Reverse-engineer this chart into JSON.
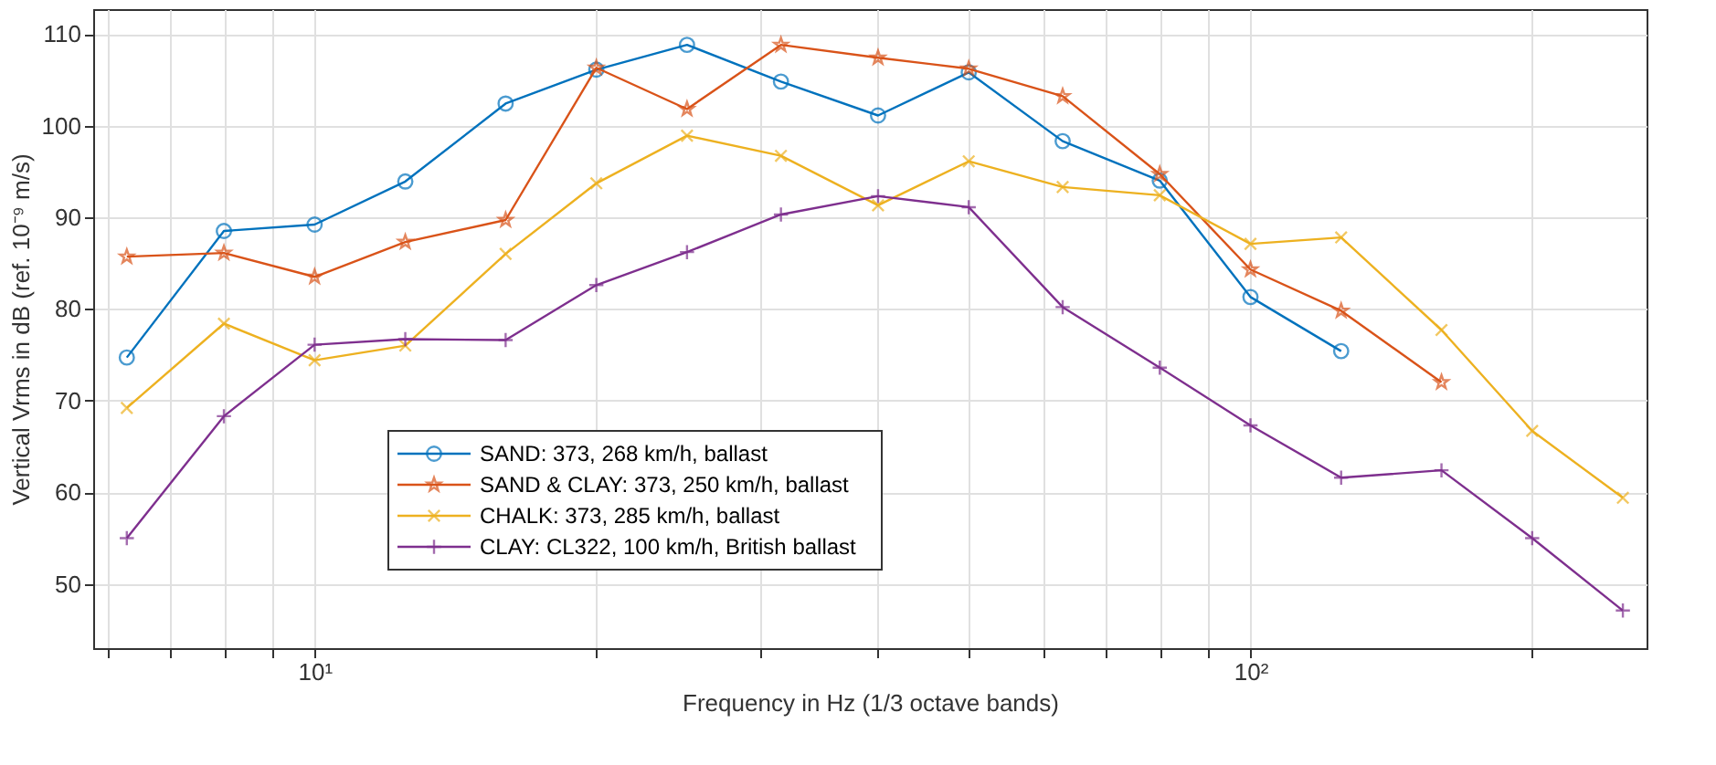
{
  "chart_data": {
    "type": "line",
    "xlabel": "Frequency in Hz (1/3 octave bands)",
    "ylabel": "Vertical Vrms in dB (ref. 10⁻⁹ m/s)",
    "log": "x",
    "xlim": [
      5.8,
      265
    ],
    "ylim": [
      43,
      112.7
    ],
    "xticks": [
      {
        "value": 6,
        "label": null
      },
      {
        "value": 7,
        "label": null
      },
      {
        "value": 8,
        "label": null
      },
      {
        "value": 9,
        "label": null
      },
      {
        "value": 10,
        "label": "10¹"
      },
      {
        "value": 20,
        "label": null
      },
      {
        "value": 30,
        "label": null
      },
      {
        "value": 40,
        "label": null
      },
      {
        "value": 50,
        "label": null
      },
      {
        "value": 60,
        "label": null
      },
      {
        "value": 70,
        "label": null
      },
      {
        "value": 80,
        "label": null
      },
      {
        "value": 90,
        "label": null
      },
      {
        "value": 100,
        "label": "10²"
      },
      {
        "value": 200,
        "label": null
      }
    ],
    "yticks": [
      50,
      60,
      70,
      80,
      90,
      100,
      110
    ],
    "grid": true,
    "legend": "bottom",
    "line_style": "solid",
    "x": [
      6.3,
      8,
      10,
      12.5,
      16,
      20,
      25,
      31.5,
      40,
      50,
      63,
      80,
      100,
      125,
      160,
      200,
      250
    ],
    "series": [
      {
        "name": "SAND: 373, 268 km/h, ballast",
        "color": "#0072bd",
        "marker": "circle",
        "values": [
          74.7,
          88.5,
          89.2,
          93.9,
          102.4,
          106.1,
          108.8,
          104.8,
          101.1,
          105.8,
          98.3,
          94.0,
          81.3,
          75.4,
          null,
          null,
          null
        ]
      },
      {
        "name": "SAND & CLAY: 373, 250 km/h, ballast",
        "color": "#d95319",
        "marker": "star",
        "values": [
          85.7,
          86.1,
          83.5,
          87.3,
          89.7,
          106.3,
          101.8,
          108.8,
          107.4,
          106.2,
          103.2,
          94.7,
          84.3,
          79.8,
          72.0,
          null,
          null
        ]
      },
      {
        "name": "CHALK: 373, 285 km/h, ballast",
        "color": "#edb120",
        "marker": "cross",
        "values": [
          69.2,
          78.4,
          74.4,
          76.0,
          86.0,
          93.7,
          98.9,
          96.7,
          91.3,
          96.1,
          93.3,
          92.4,
          87.1,
          87.8,
          77.7,
          66.7,
          59.4
        ]
      },
      {
        "name": "CLAY: CL322, 100 km/h, British ballast",
        "color": "#7e2f8e",
        "marker": "plus",
        "values": [
          55.0,
          68.3,
          76.1,
          76.7,
          76.6,
          82.6,
          86.2,
          90.3,
          92.3,
          91.1,
          80.2,
          73.6,
          67.3,
          61.6,
          62.4,
          55.0,
          47.1
        ]
      }
    ]
  }
}
